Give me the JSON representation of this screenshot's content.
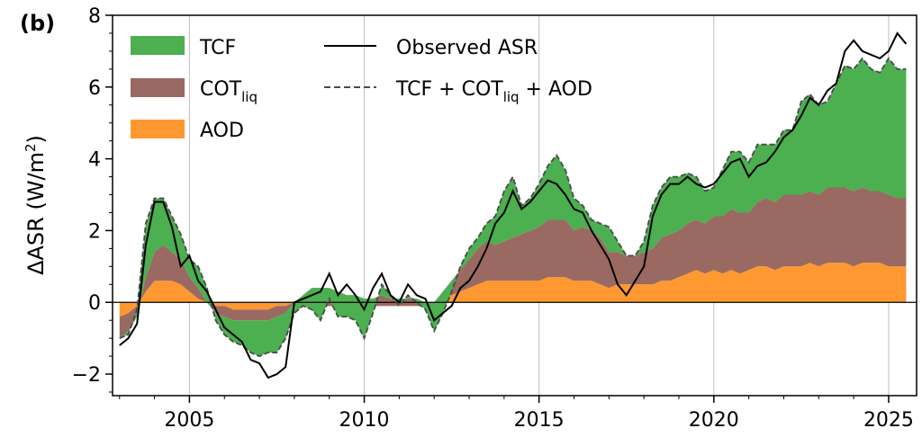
{
  "panel_label": "(b)",
  "legend_top": "TCF",
  "legend_right_top": "Observed ASR",
  "legend_right_bottom_main": "TCF + COT",
  "legend_right_bottom_tail": " + AOD",
  "legend_mid_main": "COT",
  "legend_mid_sub": "liq",
  "legend_bottom": "AOD",
  "ylabel_main": "ΔASR (W/m",
  "ylabel_sup": "2",
  "ylabel_tail": ")",
  "colors": {
    "TCF": "#4caf50",
    "COT_liq": "#9a6a62",
    "AOD": "#ff9830",
    "observed": "#000000",
    "sum": "#4a4a4a"
  },
  "chart_data": {
    "type": "area",
    "panel": "(b)",
    "xlim": [
      2002.8,
      2025.8
    ],
    "ylim": [
      -2.6,
      8
    ],
    "xticks": [
      2005,
      2010,
      2015,
      2020,
      2025
    ],
    "yticks": [
      -2,
      0,
      2,
      4,
      6,
      8
    ],
    "grid": "vertical lines at major x ticks",
    "legend_position": "top-left",
    "x": [
      2003.0,
      2003.25,
      2003.5,
      2003.75,
      2004.0,
      2004.25,
      2004.5,
      2004.75,
      2005.0,
      2005.25,
      2005.5,
      2005.75,
      2006.0,
      2006.25,
      2006.5,
      2006.75,
      2007.0,
      2007.25,
      2007.5,
      2007.75,
      2008.0,
      2008.25,
      2008.5,
      2008.75,
      2009.0,
      2009.25,
      2009.5,
      2009.75,
      2010.0,
      2010.25,
      2010.5,
      2010.75,
      2011.0,
      2011.25,
      2011.5,
      2011.75,
      2012.0,
      2012.25,
      2012.5,
      2012.75,
      2013.0,
      2013.25,
      2013.5,
      2013.75,
      2014.0,
      2014.25,
      2014.5,
      2014.75,
      2015.0,
      2015.25,
      2015.5,
      2015.75,
      2016.0,
      2016.25,
      2016.5,
      2016.75,
      2017.0,
      2017.25,
      2017.5,
      2017.75,
      2018.0,
      2018.25,
      2018.5,
      2018.75,
      2019.0,
      2019.25,
      2019.5,
      2019.75,
      2020.0,
      2020.25,
      2020.5,
      2020.75,
      2021.0,
      2021.25,
      2021.5,
      2021.75,
      2022.0,
      2022.25,
      2022.5,
      2022.75,
      2023.0,
      2023.25,
      2023.5,
      2023.75,
      2024.0,
      2024.25,
      2024.5,
      2024.75,
      2025.0,
      2025.25,
      2025.5
    ],
    "series": [
      {
        "name": "AOD",
        "values": [
          -0.4,
          -0.3,
          -0.1,
          0.3,
          0.6,
          0.6,
          0.6,
          0.5,
          0.3,
          0.1,
          0.0,
          -0.1,
          -0.1,
          -0.2,
          -0.2,
          -0.2,
          -0.2,
          -0.2,
          -0.1,
          -0.1,
          0.0,
          -0.1,
          -0.1,
          -0.1,
          -0.1,
          -0.1,
          -0.1,
          -0.1,
          -0.1,
          -0.1,
          -0.1,
          -0.1,
          -0.1,
          -0.1,
          -0.1,
          -0.1,
          -0.1,
          0.1,
          0.2,
          0.3,
          0.4,
          0.5,
          0.6,
          0.6,
          0.6,
          0.6,
          0.6,
          0.6,
          0.6,
          0.7,
          0.7,
          0.7,
          0.6,
          0.6,
          0.6,
          0.5,
          0.4,
          0.5,
          0.5,
          0.5,
          0.5,
          0.5,
          0.6,
          0.6,
          0.7,
          0.8,
          0.9,
          0.8,
          0.9,
          0.8,
          0.9,
          0.8,
          0.9,
          1.0,
          1.0,
          0.9,
          1.0,
          1.0,
          1.0,
          1.1,
          1.0,
          1.1,
          1.1,
          1.1,
          1.0,
          1.1,
          1.1,
          1.1,
          1.0,
          1.0,
          1.0
        ]
      },
      {
        "name": "COT_liq",
        "values": [
          -0.6,
          -0.5,
          -0.3,
          0.4,
          0.8,
          1.0,
          0.8,
          0.7,
          0.4,
          0.3,
          0.0,
          -0.2,
          -0.3,
          -0.3,
          -0.3,
          -0.3,
          -0.3,
          -0.3,
          -0.3,
          -0.2,
          0.0,
          0.3,
          0.5,
          0.5,
          0.5,
          0.4,
          0.3,
          0.3,
          0.2,
          0.2,
          0.3,
          0.2,
          0.2,
          0.2,
          0.2,
          0.1,
          0.1,
          0.2,
          0.4,
          0.6,
          0.8,
          1.0,
          1.1,
          1.0,
          1.1,
          1.2,
          1.3,
          1.4,
          1.5,
          1.6,
          1.6,
          1.6,
          1.4,
          1.5,
          1.4,
          1.3,
          1.0,
          0.9,
          0.8,
          0.8,
          0.9,
          1.0,
          1.2,
          1.3,
          1.3,
          1.4,
          1.4,
          1.4,
          1.5,
          1.6,
          1.7,
          1.7,
          1.6,
          1.8,
          1.9,
          1.9,
          2.0,
          2.0,
          2.0,
          2.0,
          2.0,
          2.1,
          2.1,
          2.1,
          2.1,
          2.1,
          2.0,
          2.0,
          2.0,
          1.9,
          1.9
        ]
      },
      {
        "name": "TCF",
        "values": [
          0.0,
          -0.1,
          0.2,
          1.5,
          1.5,
          1.3,
          1.0,
          0.7,
          0.5,
          0.6,
          0.4,
          -0.2,
          -0.5,
          -0.6,
          -0.7,
          -0.9,
          -1.0,
          -0.9,
          -1.0,
          -0.7,
          -0.3,
          -0.3,
          -0.6,
          -0.9,
          -0.3,
          -0.7,
          -0.6,
          -0.7,
          -1.1,
          -0.4,
          0.3,
          0.1,
          -0.2,
          0.1,
          -0.1,
          -0.2,
          -0.8,
          -0.6,
          -0.3,
          0.1,
          0.3,
          0.3,
          0.5,
          0.8,
          1.4,
          1.7,
          0.8,
          0.9,
          1.2,
          1.5,
          1.8,
          1.4,
          0.9,
          0.6,
          0.3,
          0.4,
          0.7,
          0.3,
          0.0,
          0.0,
          0.3,
          1.2,
          1.4,
          1.6,
          1.5,
          1.4,
          1.2,
          0.9,
          0.8,
          1.3,
          1.6,
          1.7,
          1.4,
          1.6,
          1.5,
          1.6,
          1.8,
          1.8,
          2.6,
          2.7,
          2.5,
          2.4,
          2.9,
          3.4,
          3.4,
          3.6,
          3.4,
          3.3,
          3.8,
          3.6,
          3.6
        ]
      },
      {
        "name": "TCF + COT_liq + AOD",
        "values": [
          -1.0,
          -0.9,
          -0.2,
          2.2,
          2.9,
          2.9,
          2.4,
          1.9,
          1.2,
          1.0,
          0.4,
          -0.5,
          -0.9,
          -1.1,
          -1.2,
          -1.4,
          -1.5,
          -1.4,
          -1.4,
          -1.0,
          -0.3,
          -0.1,
          -0.2,
          -0.5,
          0.1,
          -0.4,
          -0.4,
          -0.5,
          -1.0,
          -0.3,
          0.5,
          0.2,
          -0.1,
          0.2,
          0.0,
          -0.2,
          -0.8,
          -0.3,
          0.3,
          1.0,
          1.5,
          1.8,
          2.2,
          2.4,
          3.1,
          3.5,
          2.7,
          2.9,
          3.3,
          3.8,
          4.1,
          3.7,
          2.9,
          2.7,
          2.3,
          2.2,
          2.1,
          1.7,
          1.3,
          1.3,
          1.7,
          2.7,
          3.2,
          3.5,
          3.5,
          3.6,
          3.5,
          3.1,
          3.2,
          3.7,
          4.2,
          4.2,
          3.9,
          4.4,
          4.4,
          4.4,
          4.8,
          4.8,
          5.6,
          5.8,
          5.5,
          5.6,
          6.1,
          6.6,
          6.5,
          6.8,
          6.5,
          6.4,
          6.8,
          6.5,
          6.5
        ]
      },
      {
        "name": "Observed ASR",
        "values": [
          -1.2,
          -1.0,
          -0.6,
          1.6,
          2.8,
          2.8,
          2.1,
          1.0,
          1.3,
          0.6,
          0.3,
          -0.2,
          -0.7,
          -0.9,
          -1.1,
          -1.6,
          -1.7,
          -2.1,
          -2.0,
          -1.8,
          0.0,
          0.1,
          0.2,
          0.3,
          0.8,
          0.2,
          0.5,
          0.2,
          -0.2,
          0.4,
          0.8,
          0.2,
          0.0,
          0.5,
          0.2,
          0.1,
          -0.5,
          -0.3,
          -0.1,
          0.4,
          0.6,
          1.0,
          1.5,
          2.2,
          2.5,
          3.1,
          2.6,
          2.8,
          3.1,
          3.4,
          3.3,
          3.0,
          2.6,
          2.5,
          2.0,
          1.6,
          1.2,
          0.5,
          0.2,
          0.6,
          1.0,
          2.4,
          3.0,
          3.3,
          3.3,
          3.5,
          3.3,
          3.2,
          3.3,
          3.6,
          3.9,
          4.0,
          3.5,
          3.8,
          3.9,
          4.2,
          4.6,
          4.8,
          5.2,
          5.7,
          5.5,
          5.9,
          6.1,
          7.0,
          7.3,
          7.0,
          6.9,
          6.8,
          7.0,
          7.5,
          7.2
        ]
      }
    ]
  }
}
